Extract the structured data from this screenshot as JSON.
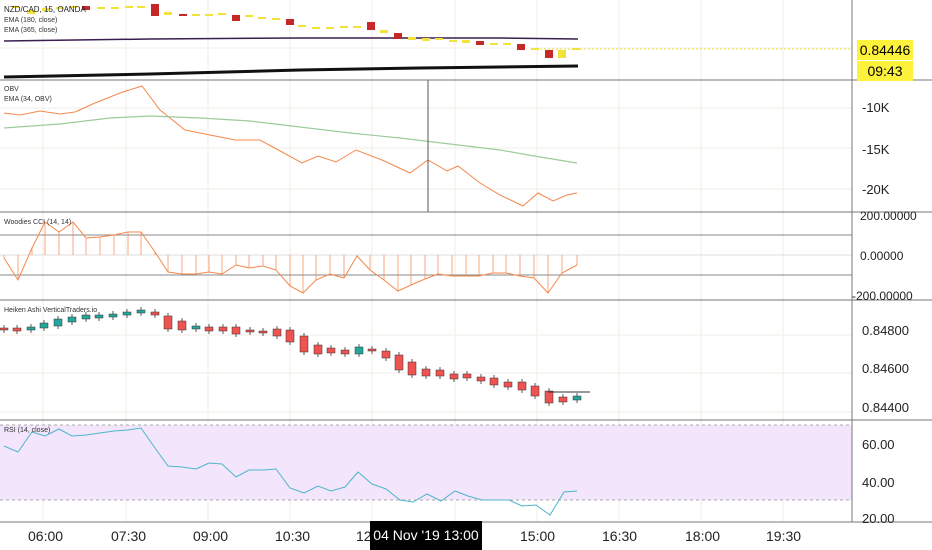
{
  "panes": {
    "price": {
      "title": "NZD/CAD, 15, OANDA",
      "indicators": [
        "EMA (180, close)",
        "EMA (365, close)"
      ],
      "current_price": "0.84446",
      "countdown": "09:43"
    },
    "obv": {
      "title": "OBV",
      "indicator": "EMA (34, OBV)",
      "ticks": [
        "-10K",
        "-15K",
        "-20K"
      ]
    },
    "cci": {
      "title": "Woodies CCI (14, 14)",
      "ticks": [
        "200.00000",
        "0.00000",
        "-200.00000"
      ]
    },
    "heiken": {
      "title": "Heiken Ashi VerticalTraders.io",
      "ticks": [
        "0.84800",
        "0.84600",
        "0.84400"
      ]
    },
    "rsi": {
      "title": "RSI (14, close)",
      "ticks": [
        "60.00",
        "40.00",
        "20.00"
      ]
    }
  },
  "time_axis": {
    "labels": [
      "06:00",
      "07:30",
      "09:00",
      "10:30",
      "12",
      "15:00",
      "16:30",
      "18:00",
      "19:30"
    ],
    "crosshair_label": "04 Nov '19   13:00"
  },
  "colors": {
    "bull": "#26a69a",
    "bear": "#ef5350",
    "obv": "#f4874b",
    "obv_ema": "#9ccc9c",
    "rsi": "#4db6c9",
    "rsi_band": "#f3e5fb",
    "badge": "#fff23a"
  }
}
